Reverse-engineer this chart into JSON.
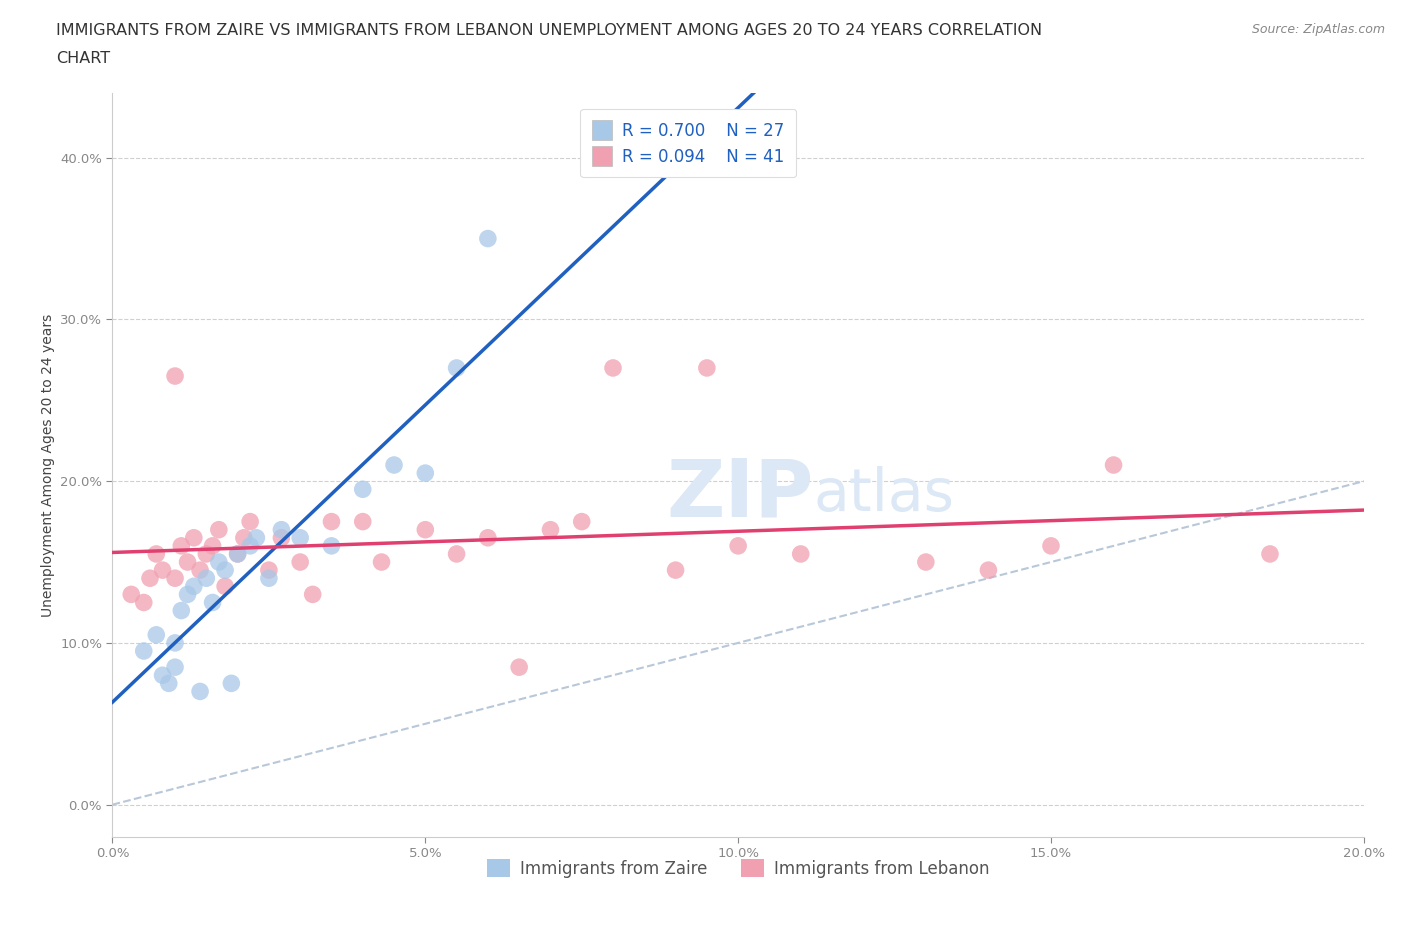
{
  "title_line1": "IMMIGRANTS FROM ZAIRE VS IMMIGRANTS FROM LEBANON UNEMPLOYMENT AMONG AGES 20 TO 24 YEARS CORRELATION",
  "title_line2": "CHART",
  "source": "Source: ZipAtlas.com",
  "ylabel": "Unemployment Among Ages 20 to 24 years",
  "xlim": [
    0.0,
    0.2
  ],
  "ylim": [
    -0.02,
    0.44
  ],
  "x_ticks": [
    0.0,
    0.05,
    0.1,
    0.15,
    0.2
  ],
  "y_ticks": [
    0.0,
    0.1,
    0.2,
    0.3,
    0.4
  ],
  "x_tick_labels": [
    "0.0%",
    "5.0%",
    "10.0%",
    "15.0%",
    "20.0%"
  ],
  "y_tick_labels": [
    "0.0%",
    "10.0%",
    "20.0%",
    "30.0%",
    "40.0%"
  ],
  "background_color": "#ffffff",
  "watermark_zip": "ZIP",
  "watermark_atlas": "atlas",
  "watermark_color": "#dce8f5",
  "grid_color": "#d0d0d0",
  "zaire_color": "#a8c8e8",
  "lebanon_color": "#f0a0b0",
  "zaire_line_color": "#2060c0",
  "lebanon_line_color": "#e04070",
  "diag_line_color": "#b8c8d8",
  "zaire_R": 0.7,
  "zaire_N": 27,
  "lebanon_R": 0.094,
  "lebanon_N": 41,
  "legend_label_zaire": "Immigrants from Zaire",
  "legend_label_lebanon": "Immigrants from Lebanon",
  "zaire_x": [
    0.005,
    0.007,
    0.008,
    0.009,
    0.01,
    0.01,
    0.011,
    0.012,
    0.013,
    0.014,
    0.015,
    0.016,
    0.017,
    0.018,
    0.019,
    0.02,
    0.022,
    0.023,
    0.025,
    0.027,
    0.03,
    0.035,
    0.04,
    0.045,
    0.05,
    0.055,
    0.06
  ],
  "zaire_y": [
    0.095,
    0.105,
    0.08,
    0.075,
    0.1,
    0.085,
    0.12,
    0.13,
    0.135,
    0.07,
    0.14,
    0.125,
    0.15,
    0.145,
    0.075,
    0.155,
    0.16,
    0.165,
    0.14,
    0.17,
    0.165,
    0.16,
    0.195,
    0.21,
    0.205,
    0.27,
    0.35
  ],
  "lebanon_x": [
    0.003,
    0.005,
    0.006,
    0.007,
    0.008,
    0.01,
    0.01,
    0.011,
    0.012,
    0.013,
    0.014,
    0.015,
    0.016,
    0.017,
    0.018,
    0.02,
    0.021,
    0.022,
    0.025,
    0.027,
    0.03,
    0.032,
    0.035,
    0.04,
    0.043,
    0.05,
    0.055,
    0.06,
    0.065,
    0.07,
    0.075,
    0.08,
    0.09,
    0.095,
    0.1,
    0.11,
    0.13,
    0.14,
    0.15,
    0.16,
    0.185
  ],
  "lebanon_y": [
    0.13,
    0.125,
    0.14,
    0.155,
    0.145,
    0.265,
    0.14,
    0.16,
    0.15,
    0.165,
    0.145,
    0.155,
    0.16,
    0.17,
    0.135,
    0.155,
    0.165,
    0.175,
    0.145,
    0.165,
    0.15,
    0.13,
    0.175,
    0.175,
    0.15,
    0.17,
    0.155,
    0.165,
    0.085,
    0.17,
    0.175,
    0.27,
    0.145,
    0.27,
    0.16,
    0.155,
    0.15,
    0.145,
    0.16,
    0.21,
    0.155
  ],
  "title_fontsize": 11.5,
  "axis_label_fontsize": 10,
  "tick_fontsize": 9.5,
  "legend_fontsize": 12,
  "source_fontsize": 9
}
